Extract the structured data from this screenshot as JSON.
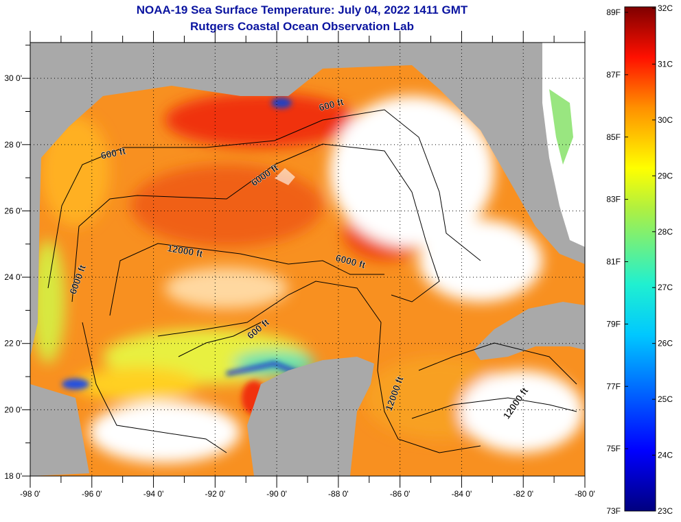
{
  "title": {
    "line1": "NOAA-19 Sea Surface Temperature:  July 04, 2022 1411 GMT",
    "line2": "Rutgers Coastal Ocean Observation Lab"
  },
  "map": {
    "lon_range": [
      -98,
      -80
    ],
    "lat_range": [
      18,
      31.08
    ],
    "x_tick_labels": [
      "-98 0'",
      "-96 0'",
      "-94 0'",
      "-92 0'",
      "-90 0'",
      "-88 0'",
      "-86 0'",
      "-84 0'",
      "-82 0'",
      "-80 0'"
    ],
    "x_tick_values": [
      -98,
      -96,
      -94,
      -92,
      -90,
      -88,
      -86,
      -84,
      -82,
      -80
    ],
    "y_tick_labels": [
      "18 0'",
      "20 0'",
      "22 0'",
      "24 0'",
      "26 0'",
      "28 0'",
      "30 0'"
    ],
    "y_tick_values": [
      18,
      20,
      22,
      24,
      26,
      28,
      30
    ],
    "contour_labels": [
      "600 ft",
      "6000 ft",
      "600 ft",
      "12000 ft",
      "6000 ft",
      "6000 ft",
      "600 ft",
      "12000 ft",
      "12000 ft"
    ],
    "colors": {
      "land": "#a9a9a9",
      "nodata": "#ffffff",
      "contour": "#000000"
    }
  },
  "colorbar": {
    "fahrenheit_labels": [
      "89F",
      "87F",
      "85F",
      "83F",
      "81F",
      "79F",
      "77F",
      "75F",
      "73F"
    ],
    "celsius_labels": [
      "32C",
      "31C",
      "30C",
      "29C",
      "28C",
      "27C",
      "26C",
      "25C",
      "24C",
      "23C"
    ],
    "range_c": [
      23,
      32
    ]
  }
}
